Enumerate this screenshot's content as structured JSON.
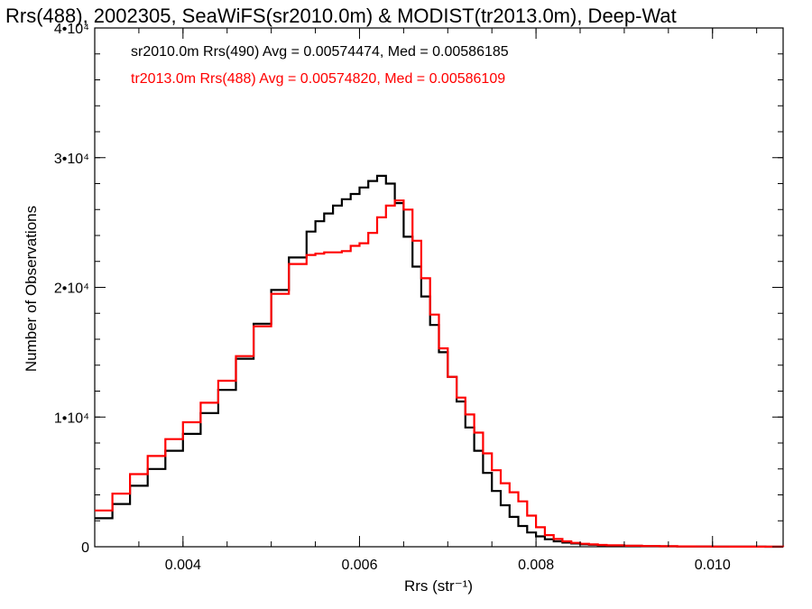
{
  "chart_data": {
    "type": "line",
    "title": "Rrs(488), 2002305, SeaWiFS(sr2010.0m) & MODIST(tr2013.0m), Deep-Wat",
    "xlabel": "Rrs (str⁻¹)",
    "ylabel": "Number of Observations",
    "xlim": [
      0.003,
      0.0108
    ],
    "ylim": [
      0,
      40000
    ],
    "x_ticks": [
      {
        "value": 0.004,
        "label": "0.004"
      },
      {
        "value": 0.006,
        "label": "0.006"
      },
      {
        "value": 0.008,
        "label": "0.008"
      },
      {
        "value": 0.01,
        "label": "0.010"
      }
    ],
    "y_ticks": [
      {
        "value": 0,
        "label": "0"
      },
      {
        "value": 10000,
        "label": "1•10⁴"
      },
      {
        "value": 20000,
        "label": "2•10⁴"
      },
      {
        "value": 30000,
        "label": "3•10⁴"
      },
      {
        "value": 40000,
        "label": "4•10⁴"
      }
    ],
    "legend_entries": [
      {
        "text": "sr2010.0m Rrs(490) Avg = 0.00574474, Med = 0.00586185",
        "color": "#000000"
      },
      {
        "text": "tr2013.0m Rrs(488) Avg = 0.00574820, Med = 0.00586109",
        "color": "#ff0000"
      }
    ],
    "grid": false,
    "series": [
      {
        "color": "#000000",
        "x": [
          0.003,
          0.0032,
          0.0034,
          0.0036,
          0.0038,
          0.004,
          0.0042,
          0.0044,
          0.0046,
          0.0048,
          0.005,
          0.0052,
          0.0054,
          0.0055,
          0.0056,
          0.0057,
          0.0058,
          0.0059,
          0.006,
          0.0061,
          0.0062,
          0.0063,
          0.0064,
          0.0065,
          0.0066,
          0.0067,
          0.0068,
          0.0069,
          0.007,
          0.0071,
          0.0072,
          0.0073,
          0.0074,
          0.0075,
          0.0076,
          0.0077,
          0.0078,
          0.0079,
          0.008,
          0.0081,
          0.0082,
          0.0083,
          0.0084,
          0.0085,
          0.0086,
          0.0087,
          0.0088,
          0.009,
          0.0092,
          0.0094,
          0.0096,
          0.0098,
          0.01,
          0.0102,
          0.0104,
          0.0106,
          0.0108
        ],
        "y": [
          2200,
          3300,
          4700,
          6000,
          7400,
          8700,
          10300,
          12100,
          14500,
          17200,
          19800,
          22300,
          24300,
          25100,
          25700,
          26300,
          26800,
          27200,
          27700,
          28200,
          28600,
          28000,
          26500,
          23900,
          21600,
          19300,
          17100,
          15000,
          13100,
          11200,
          9200,
          7400,
          5700,
          4300,
          3200,
          2300,
          1600,
          1100,
          800,
          580,
          420,
          320,
          250,
          190,
          150,
          120,
          100,
          70,
          50,
          35,
          25,
          18,
          12,
          8,
          5,
          3,
          2
        ]
      },
      {
        "color": "#ff0000",
        "x": [
          0.003,
          0.0032,
          0.0034,
          0.0036,
          0.0038,
          0.004,
          0.0042,
          0.0044,
          0.0046,
          0.0048,
          0.005,
          0.0052,
          0.0054,
          0.0055,
          0.0056,
          0.0057,
          0.0058,
          0.0059,
          0.006,
          0.0061,
          0.0062,
          0.0063,
          0.0064,
          0.0065,
          0.0066,
          0.0067,
          0.0068,
          0.0069,
          0.007,
          0.0071,
          0.0072,
          0.0073,
          0.0074,
          0.0075,
          0.0076,
          0.0077,
          0.0078,
          0.0079,
          0.008,
          0.0081,
          0.0082,
          0.0083,
          0.0084,
          0.0085,
          0.0086,
          0.0087,
          0.0088,
          0.009,
          0.0092,
          0.0094,
          0.0096,
          0.0098,
          0.01,
          0.0102,
          0.0104,
          0.0106,
          0.0108
        ],
        "y": [
          2800,
          4100,
          5600,
          7000,
          8300,
          9600,
          11100,
          12800,
          14700,
          17000,
          19500,
          21800,
          22500,
          22600,
          22700,
          22700,
          22800,
          23200,
          23400,
          24200,
          25400,
          26300,
          26700,
          26000,
          23600,
          20700,
          17900,
          15300,
          13100,
          11500,
          10200,
          8800,
          7200,
          5900,
          4900,
          4200,
          3500,
          2400,
          1500,
          900,
          600,
          420,
          300,
          230,
          180,
          140,
          110,
          75,
          55,
          40,
          30,
          22,
          15,
          10,
          6,
          4,
          2
        ]
      }
    ]
  }
}
